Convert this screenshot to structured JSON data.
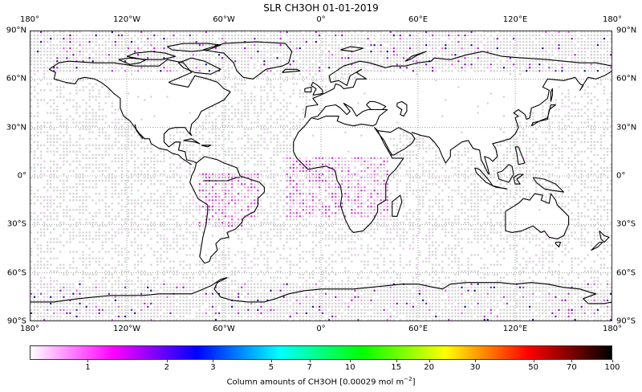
{
  "title": "SLR CH3OH 01-01-2019",
  "map": {
    "projection": "PlateCarree",
    "extent": [
      -180,
      180,
      -90,
      90
    ],
    "longitude_labels": [
      {
        "value": -180,
        "label": "180°"
      },
      {
        "value": -120,
        "label": "120°W"
      },
      {
        "value": -60,
        "label": "60°W"
      },
      {
        "value": 0,
        "label": "0°"
      },
      {
        "value": 60,
        "label": "60°E"
      },
      {
        "value": 120,
        "label": "120°E"
      },
      {
        "value": 180,
        "label": "180°"
      }
    ],
    "latitude_labels": [
      {
        "value": 90,
        "label": "90°N"
      },
      {
        "value": 60,
        "label": "60°N"
      },
      {
        "value": 30,
        "label": "30°N"
      },
      {
        "value": 0,
        "label": "0°"
      },
      {
        "value": -30,
        "label": "30°S"
      },
      {
        "value": -60,
        "label": "60°S"
      },
      {
        "value": -90,
        "label": "90°S"
      }
    ],
    "gridlines": {
      "lon_step": 60,
      "lat_step": 30,
      "style": "dotted",
      "color": "#888888"
    },
    "no_data_color": "#d3d3d3",
    "grid_resolution_deg": 2,
    "enhanced_regions": [
      {
        "name": "South America (Amazon / Brazil)",
        "lon": [
          -75,
          -40
        ],
        "lat": [
          -30,
          0
        ],
        "level": "1-2"
      },
      {
        "name": "Central Africa",
        "lon": [
          -20,
          40
        ],
        "lat": [
          -25,
          10
        ],
        "level": "1-2"
      },
      {
        "name": "Arctic scattered",
        "lat": [
          65,
          90
        ],
        "level": "1-3"
      },
      {
        "name": "Antarctic scattered",
        "lat": [
          -90,
          -65
        ],
        "level": "1-3"
      }
    ]
  },
  "colorbar": {
    "scale": "log",
    "min": 0.6,
    "max": 100,
    "ticks": [
      1,
      2,
      3,
      5,
      7,
      10,
      15,
      20,
      30,
      50,
      70,
      100
    ],
    "tick_labels": [
      "1",
      "2",
      "3",
      "5",
      "7",
      "10",
      "15",
      "20",
      "30",
      "50",
      "70",
      "100"
    ],
    "colors": [
      "#ffffff",
      "#ff00ff",
      "#0000ff",
      "#00ffff",
      "#00ff00",
      "#ffff00",
      "#ff0000",
      "#000000"
    ],
    "label_prefix": "Column amounts of CH3OH [0.00029 mol m",
    "label_exp": "−2",
    "label_suffix": "]"
  }
}
